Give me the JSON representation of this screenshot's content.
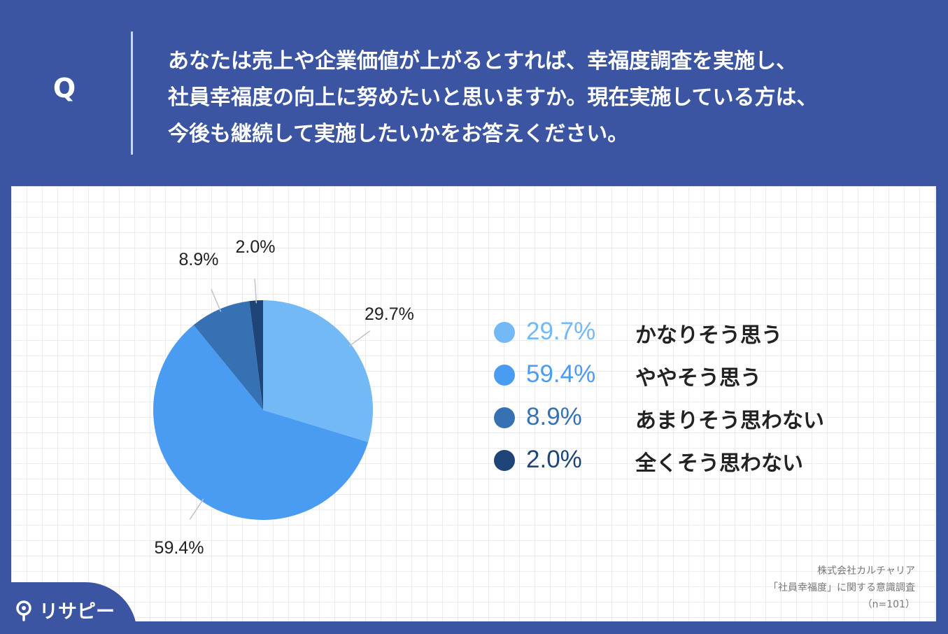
{
  "question": {
    "mark": "Q",
    "lines": [
      "あなたは売上や企業価値が上がるとすれば、幸福度調査を実施し、",
      "社員幸福度の向上に努めたいと思いますか。現在実施している方は、",
      "今後も継続して実施したいかをお答えください。"
    ]
  },
  "chart_data": {
    "type": "pie",
    "categories": [
      "かなりそう思う",
      "ややそう思う",
      "あまりそう思わない",
      "全くそう思わない"
    ],
    "values": [
      29.7,
      59.4,
      8.9,
      2.0
    ],
    "labels": [
      "29.7%",
      "59.4%",
      "8.9%",
      "2.0%"
    ],
    "colors": [
      "#72b9f6",
      "#4a9cf2",
      "#3671b4",
      "#1e4478"
    ],
    "start_angle_deg": 0,
    "direction": "clockwise",
    "legend_position": "right"
  },
  "legend": [
    {
      "pct": "29.7%",
      "text": "かなりそう思う",
      "color": "#72b9f6"
    },
    {
      "pct": "59.4%",
      "text": "ややそう思う",
      "color": "#4a9cf2"
    },
    {
      "pct": "8.9%",
      "text": "あまりそう思わない",
      "color": "#3671b4"
    },
    {
      "pct": "2.0%",
      "text": "全くそう思わない",
      "color": "#1e4478"
    }
  ],
  "source": {
    "company": "株式会社カルチャリア",
    "survey": "「社員幸福度」に関する意識調査",
    "sample": "（n=101）"
  },
  "brand": {
    "name": "リサピー",
    "icon": "pin-icon"
  },
  "theme": {
    "frame": "#3b55a2",
    "panel": "#ffffff"
  }
}
